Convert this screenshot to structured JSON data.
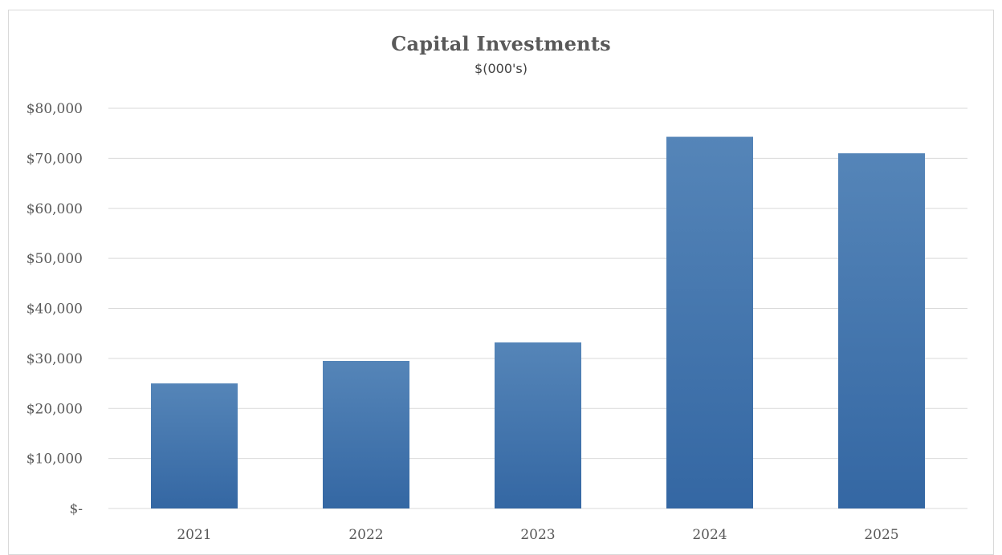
{
  "chart_data": {
    "type": "bar",
    "title": "Capital Investments",
    "subtitle": "$(000's)",
    "xlabel": "",
    "ylabel": "",
    "categories": [
      "2021",
      "2022",
      "2023",
      "2024",
      "2025"
    ],
    "values": [
      25000,
      29500,
      33200,
      74300,
      71000
    ],
    "ylim": [
      0,
      80000
    ],
    "y_ticks": [
      0,
      10000,
      20000,
      30000,
      40000,
      50000,
      60000,
      70000,
      80000
    ],
    "y_tick_labels": [
      "$-",
      "$10,000",
      "$20,000",
      "$30,000",
      "$40,000",
      "$50,000",
      "$60,000",
      "$70,000",
      "$80,000"
    ],
    "grid": true,
    "legend": "none",
    "bar_color": "#3F73AC",
    "bar_color_light": "#5585B8",
    "bar_color_dark": "#3467A3",
    "grid_color": "#d9d9d9"
  }
}
